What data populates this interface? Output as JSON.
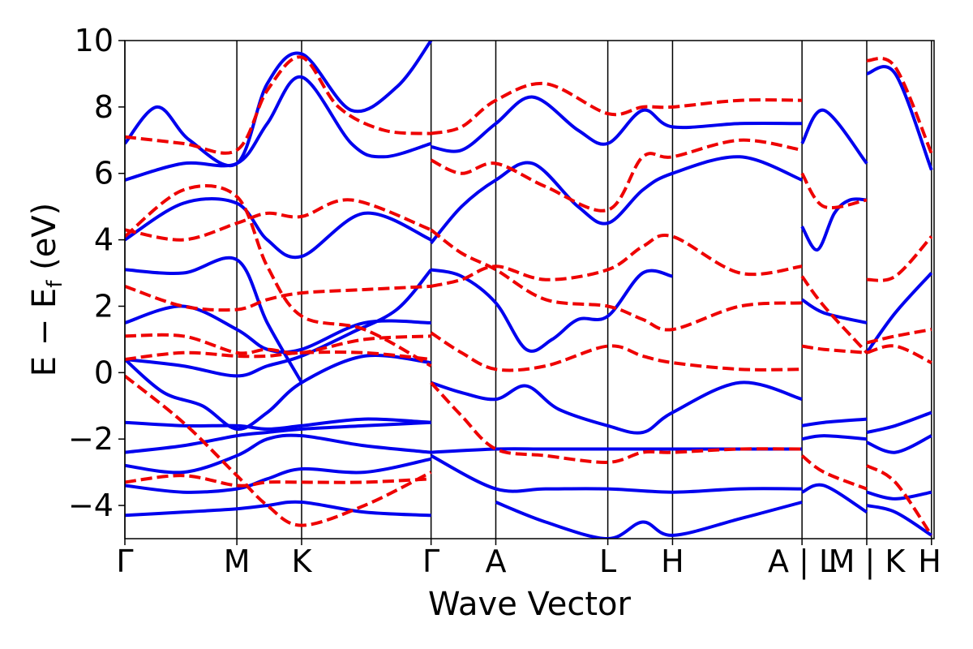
{
  "chart_data": {
    "type": "line",
    "xlabel": "Wave Vector",
    "ylabel": "E − E",
    "ylabel_sub": "f",
    "ylabel_unit": " (eV)",
    "ylim": [
      -5,
      10
    ],
    "yticks": [
      -4,
      -2,
      0,
      2,
      4,
      6,
      8,
      10
    ],
    "ytick_labels": [
      "−4",
      "−2",
      "0",
      "2",
      "4",
      "6",
      "8",
      "10"
    ],
    "xlim": [
      0,
      12.5
    ],
    "kpoints": [
      {
        "label": "Γ",
        "x": 0
      },
      {
        "label": "M",
        "x": 1.73
      },
      {
        "label": "K",
        "x": 2.73
      },
      {
        "label": "Γ",
        "x": 4.73
      },
      {
        "label": "A",
        "x": 5.73
      },
      {
        "label": "L",
        "x": 7.46
      },
      {
        "label": "H",
        "x": 8.46
      },
      {
        "label": "A | L",
        "x": 10.46
      },
      {
        "label": "M | K",
        "x": 11.46
      },
      {
        "label": "H",
        "x": 12.46
      }
    ],
    "vlines": [
      0,
      1.73,
      2.73,
      4.73,
      5.73,
      7.46,
      8.46,
      10.46,
      11.46,
      12.46
    ],
    "colors": {
      "solid": "#0000ee",
      "dashed": "#ee0000"
    },
    "series": [
      {
        "style": "solid",
        "x": [
          0,
          0.9,
          1.73,
          2.2,
          2.73,
          3.7,
          4.73
        ],
        "y": [
          -4.3,
          -4.2,
          -4.1,
          -4.0,
          -3.9,
          -4.2,
          -4.3
        ]
      },
      {
        "style": "solid",
        "x": [
          0,
          0.9,
          1.73,
          2.2,
          2.73,
          3.7,
          4.73
        ],
        "y": [
          -3.4,
          -3.6,
          -3.5,
          -3.2,
          -2.9,
          -3.0,
          -2.6
        ]
      },
      {
        "style": "solid",
        "x": [
          0,
          0.9,
          1.73,
          2.2,
          2.73,
          3.7,
          4.73
        ],
        "y": [
          -2.8,
          -3.0,
          -2.5,
          -2.0,
          -1.9,
          -2.2,
          -2.4
        ]
      },
      {
        "style": "solid",
        "x": [
          0,
          0.9,
          1.73,
          2.2,
          2.73,
          3.7,
          4.73
        ],
        "y": [
          -2.4,
          -2.2,
          -1.9,
          -1.8,
          -1.7,
          -1.6,
          -1.5
        ]
      },
      {
        "style": "solid",
        "x": [
          0,
          0.9,
          1.73,
          2.2,
          2.73,
          3.7,
          4.73
        ],
        "y": [
          -1.5,
          -1.6,
          -1.6,
          -1.7,
          -1.6,
          -1.4,
          -1.5
        ]
      },
      {
        "style": "solid",
        "x": [
          0,
          0.6,
          1.2,
          1.73,
          2.2,
          2.73,
          3.7,
          4.73
        ],
        "y": [
          0.4,
          -0.6,
          -1.0,
          -1.7,
          -1.2,
          -0.3,
          0.5,
          0.3
        ]
      },
      {
        "style": "solid",
        "x": [
          0,
          0.9,
          1.73,
          2.2,
          2.73,
          3.5,
          4.2,
          4.73
        ],
        "y": [
          0.4,
          0.2,
          -0.1,
          0.2,
          0.5,
          1.2,
          1.9,
          3.1
        ]
      },
      {
        "style": "solid",
        "x": [
          0,
          0.9,
          1.73,
          2.2,
          2.73,
          3.7,
          4.73
        ],
        "y": [
          1.5,
          2.0,
          1.3,
          0.7,
          0.7,
          1.5,
          1.5
        ]
      },
      {
        "style": "solid",
        "x": [
          0,
          0.9,
          1.73,
          2.2,
          2.73
        ],
        "y": [
          3.1,
          3.0,
          3.4,
          1.5,
          -0.3
        ]
      },
      {
        "style": "solid",
        "x": [
          0,
          0.9,
          1.73,
          2.2,
          2.73,
          3.7,
          4.73
        ],
        "y": [
          4.0,
          5.1,
          5.1,
          4.0,
          3.5,
          4.8,
          4.0
        ]
      },
      {
        "style": "solid",
        "x": [
          0,
          0.9,
          1.73,
          2.2,
          2.73,
          3.5,
          4.0,
          4.73
        ],
        "y": [
          5.8,
          6.3,
          6.3,
          7.5,
          8.9,
          6.9,
          6.5,
          6.9
        ]
      },
      {
        "style": "solid",
        "x": [
          0,
          0.5,
          1.0,
          1.73,
          2.2,
          2.73,
          3.5,
          4.2,
          4.73
        ],
        "y": [
          6.9,
          8.0,
          7.0,
          6.3,
          8.7,
          9.6,
          7.9,
          8.6,
          10.0
        ]
      },
      {
        "style": "solid",
        "x": [
          4.73,
          5.2,
          5.73,
          6.2,
          6.6,
          7.0,
          7.46,
          8.0,
          8.46
        ],
        "y": [
          3.1,
          2.9,
          2.1,
          0.7,
          1.0,
          1.6,
          1.7,
          3.0,
          2.9
        ]
      },
      {
        "style": "solid",
        "x": [
          4.73,
          5.2,
          5.73,
          6.2,
          6.7,
          7.46,
          8.0,
          8.46,
          9.5,
          10.46
        ],
        "y": [
          -0.3,
          -0.6,
          -0.8,
          -0.4,
          -1.1,
          -1.6,
          -1.8,
          -1.2,
          -0.3,
          -0.8
        ]
      },
      {
        "style": "solid",
        "x": [
          4.73,
          5.73,
          6.5,
          7.46,
          8.46,
          9.5,
          10.46
        ],
        "y": [
          -2.4,
          -2.3,
          -2.3,
          -2.3,
          -2.3,
          -2.3,
          -2.3
        ]
      },
      {
        "style": "solid",
        "x": [
          4.73,
          5.73,
          6.5,
          7.46,
          8.46,
          9.5,
          10.46
        ],
        "y": [
          -2.5,
          -3.5,
          -3.5,
          -3.5,
          -3.6,
          -3.5,
          -3.5
        ]
      },
      {
        "style": "solid",
        "x": [
          5.73,
          6.5,
          7.46,
          8.0,
          8.46,
          9.5,
          10.46
        ],
        "y": [
          -3.9,
          -4.5,
          -5.0,
          -4.5,
          -4.9,
          -4.4,
          -3.9
        ]
      },
      {
        "style": "solid",
        "x": [
          4.73,
          5.2,
          5.73,
          6.3,
          7.0,
          7.46,
          8.0,
          8.46,
          9.5,
          10.46
        ],
        "y": [
          3.9,
          5.0,
          5.8,
          6.3,
          5.0,
          4.5,
          5.5,
          6.0,
          6.5,
          5.8
        ]
      },
      {
        "style": "solid",
        "x": [
          4.73,
          5.2,
          5.73,
          6.3,
          7.0,
          7.46,
          8.0,
          8.46,
          9.5,
          10.46
        ],
        "y": [
          6.8,
          6.7,
          7.5,
          8.3,
          7.3,
          6.9,
          7.9,
          7.4,
          7.5,
          7.5
        ]
      },
      {
        "style": "solid",
        "x": [
          10.46,
          10.7,
          10.96,
          11.2,
          11.46
        ],
        "y": [
          4.4,
          3.7,
          4.8,
          5.2,
          5.2
        ]
      },
      {
        "style": "solid",
        "x": [
          10.46,
          10.8,
          11.46
        ],
        "y": [
          2.2,
          1.8,
          1.5
        ]
      },
      {
        "style": "solid",
        "x": [
          10.46,
          10.8,
          11.46
        ],
        "y": [
          -1.6,
          -1.5,
          -1.4
        ]
      },
      {
        "style": "solid",
        "x": [
          10.46,
          10.8,
          11.46
        ],
        "y": [
          -2.0,
          -1.9,
          -2.0
        ]
      },
      {
        "style": "solid",
        "x": [
          10.46,
          10.8,
          11.46
        ],
        "y": [
          -3.6,
          -3.4,
          -4.2
        ]
      },
      {
        "style": "solid",
        "x": [
          10.46,
          10.8,
          11.46
        ],
        "y": [
          6.9,
          7.9,
          6.3
        ]
      },
      {
        "style": "solid",
        "x": [
          11.46,
          11.9,
          12.46
        ],
        "y": [
          0.6,
          1.8,
          3.0
        ]
      },
      {
        "style": "solid",
        "x": [
          11.46,
          11.9,
          12.46
        ],
        "y": [
          -1.8,
          -1.6,
          -1.2
        ]
      },
      {
        "style": "solid",
        "x": [
          11.46,
          11.9,
          12.46
        ],
        "y": [
          -2.1,
          -2.4,
          -1.9
        ]
      },
      {
        "style": "solid",
        "x": [
          11.46,
          11.9,
          12.46
        ],
        "y": [
          -3.6,
          -3.8,
          -3.6
        ]
      },
      {
        "style": "solid",
        "x": [
          11.46,
          11.9,
          12.46
        ],
        "y": [
          -4.0,
          -4.2,
          -4.9
        ]
      },
      {
        "style": "solid",
        "x": [
          11.46,
          11.9,
          12.46
        ],
        "y": [
          9.0,
          9.0,
          6.1
        ]
      },
      {
        "style": "dashed",
        "x": [
          0,
          0.9,
          1.73,
          2.2,
          2.73,
          3.7,
          4.73
        ],
        "y": [
          -3.3,
          -3.1,
          -3.4,
          -3.3,
          -3.3,
          -3.3,
          -3.2
        ]
      },
      {
        "style": "dashed",
        "x": [
          0,
          0.9,
          1.73,
          2.2,
          2.73,
          3.7,
          4.73
        ],
        "y": [
          -0.1,
          -1.5,
          -3.1,
          -4.0,
          -4.6,
          -4.0,
          -3.0
        ]
      },
      {
        "style": "dashed",
        "x": [
          0,
          0.9,
          1.73,
          2.2,
          2.73,
          3.7,
          4.73
        ],
        "y": [
          1.1,
          1.1,
          0.6,
          0.7,
          0.6,
          1.0,
          1.1
        ]
      },
      {
        "style": "dashed",
        "x": [
          0,
          0.9,
          1.73,
          2.2,
          2.73,
          3.7,
          4.73
        ],
        "y": [
          0.4,
          0.6,
          0.5,
          0.5,
          0.6,
          0.6,
          0.4
        ]
      },
      {
        "style": "dashed",
        "x": [
          0,
          0.9,
          1.73,
          2.2,
          2.73,
          3.7,
          4.73
        ],
        "y": [
          2.6,
          2.0,
          1.9,
          2.2,
          2.4,
          2.5,
          2.6
        ]
      },
      {
        "style": "dashed",
        "x": [
          0,
          0.9,
          1.73,
          2.2,
          2.73,
          3.5,
          4.73
        ],
        "y": [
          4.3,
          4.0,
          4.5,
          4.8,
          4.7,
          5.2,
          4.3
        ]
      },
      {
        "style": "dashed",
        "x": [
          0,
          0.9,
          1.73,
          2.2,
          2.73,
          3.3,
          4.0,
          4.73
        ],
        "y": [
          7.1,
          6.9,
          6.7,
          8.5,
          9.5,
          8.0,
          7.3,
          7.2
        ]
      },
      {
        "style": "dashed",
        "x": [
          0,
          0.9,
          1.73,
          2.2,
          2.73,
          3.7,
          4.73
        ],
        "y": [
          4.1,
          5.5,
          5.3,
          3.2,
          1.7,
          1.3,
          0.2
        ]
      },
      {
        "style": "dashed",
        "x": [
          4.73,
          5.2,
          5.73,
          6.5,
          7.46,
          8.0,
          8.46,
          9.5,
          10.46
        ],
        "y": [
          1.2,
          0.6,
          0.1,
          0.2,
          0.8,
          0.5,
          0.3,
          0.1,
          0.1
        ]
      },
      {
        "style": "dashed",
        "x": [
          4.73,
          5.2,
          5.73,
          6.5,
          7.46,
          8.0,
          8.46,
          9.5,
          10.46
        ],
        "y": [
          2.6,
          2.8,
          3.2,
          2.8,
          3.1,
          3.8,
          4.1,
          3.0,
          3.2
        ]
      },
      {
        "style": "dashed",
        "x": [
          4.73,
          5.2,
          5.73,
          6.5,
          7.46,
          8.0,
          8.46,
          9.5,
          10.46
        ],
        "y": [
          4.3,
          3.6,
          3.1,
          2.2,
          2.0,
          1.6,
          1.3,
          2.0,
          2.1
        ]
      },
      {
        "style": "dashed",
        "x": [
          4.73,
          5.2,
          5.73,
          6.5,
          7.46,
          8.0,
          8.46,
          9.5,
          10.46
        ],
        "y": [
          -0.3,
          -1.3,
          -2.3,
          -2.5,
          -2.7,
          -2.4,
          -2.4,
          -2.3,
          -2.3
        ]
      },
      {
        "style": "dashed",
        "x": [
          4.73,
          5.2,
          5.73,
          6.5,
          7.46,
          8.0,
          8.46,
          9.5,
          10.46
        ],
        "y": [
          7.2,
          7.4,
          8.2,
          8.7,
          7.8,
          8.0,
          8.0,
          8.2,
          8.2
        ]
      },
      {
        "style": "dashed",
        "x": [
          4.73,
          5.2,
          5.73,
          6.5,
          7.46,
          8.0,
          8.46,
          9.5,
          10.46
        ],
        "y": [
          6.4,
          6.0,
          6.3,
          5.6,
          4.9,
          6.5,
          6.5,
          7.0,
          6.7
        ]
      },
      {
        "style": "dashed",
        "x": [
          10.46,
          10.8,
          11.46
        ],
        "y": [
          0.8,
          0.7,
          0.6
        ]
      },
      {
        "style": "dashed",
        "x": [
          10.46,
          10.8,
          11.46
        ],
        "y": [
          2.9,
          2.0,
          0.6
        ]
      },
      {
        "style": "dashed",
        "x": [
          10.46,
          10.8,
          11.46
        ],
        "y": [
          6.0,
          5.0,
          5.2
        ]
      },
      {
        "style": "dashed",
        "x": [
          10.46,
          10.8,
          11.46
        ],
        "y": [
          -2.5,
          -3.0,
          -3.5
        ]
      },
      {
        "style": "dashed",
        "x": [
          11.46,
          11.9,
          12.46
        ],
        "y": [
          0.6,
          0.8,
          0.3
        ]
      },
      {
        "style": "dashed",
        "x": [
          11.46,
          11.9,
          12.46
        ],
        "y": [
          0.9,
          1.1,
          1.3
        ]
      },
      {
        "style": "dashed",
        "x": [
          11.46,
          11.9,
          12.46
        ],
        "y": [
          2.8,
          2.9,
          4.1
        ]
      },
      {
        "style": "dashed",
        "x": [
          11.46,
          11.9,
          12.46
        ],
        "y": [
          -2.8,
          -3.3,
          -4.9
        ]
      },
      {
        "style": "dashed",
        "x": [
          11.46,
          11.9,
          12.46
        ],
        "y": [
          9.4,
          9.2,
          6.6
        ]
      }
    ]
  }
}
